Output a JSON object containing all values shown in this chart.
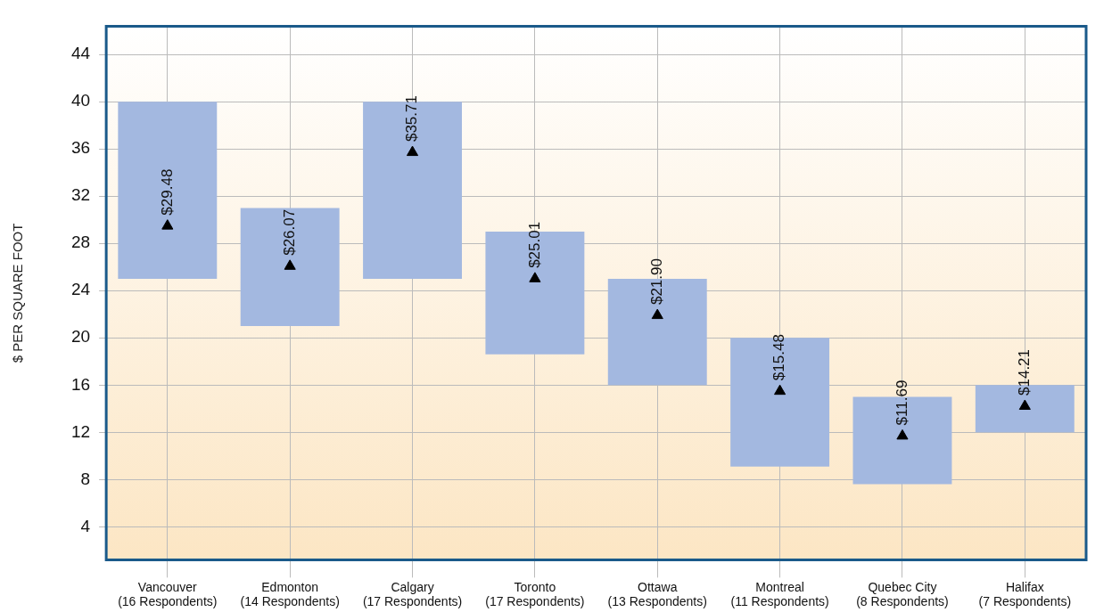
{
  "chart_data": {
    "type": "bar",
    "ylabel": "$ PER SQUARE FOOT",
    "categories": [
      "Vancouver (16 Respondents)",
      "Edmonton (14 Respondents)",
      "Calgary (17 Respondents)",
      "Toronto (17 Respondents)",
      "Ottawa (13 Respondents)",
      "Montreal (11 Respondents)",
      "Quebec City (8 Respondents)",
      "Halifax (7 Respondents)"
    ],
    "ylim": [
      1.2,
      46.4
    ],
    "yticks": [
      4,
      8,
      12,
      16,
      20,
      24,
      28,
      32,
      36,
      40,
      44
    ],
    "grid": true,
    "legend": false,
    "series": [
      {
        "color": "#a3b8e0",
        "base": [
          25,
          21,
          25,
          18.6,
          16,
          9.1,
          7.6,
          12
        ],
        "values": [
          15,
          10,
          15,
          10.4,
          9,
          10.9,
          7.4,
          4
        ]
      },
      {
        "type": "scatter",
        "color": "#000000",
        "marker": "triangle",
        "values": [
          29.48,
          26.07,
          35.71,
          25.01,
          21.9,
          15.48,
          11.69,
          14.21
        ],
        "value_labels": [
          "$29.48",
          "$26.07",
          "$35.71",
          "$25.01",
          "$21.90",
          "$15.48",
          "$11.69",
          "$14.21"
        ]
      }
    ]
  }
}
